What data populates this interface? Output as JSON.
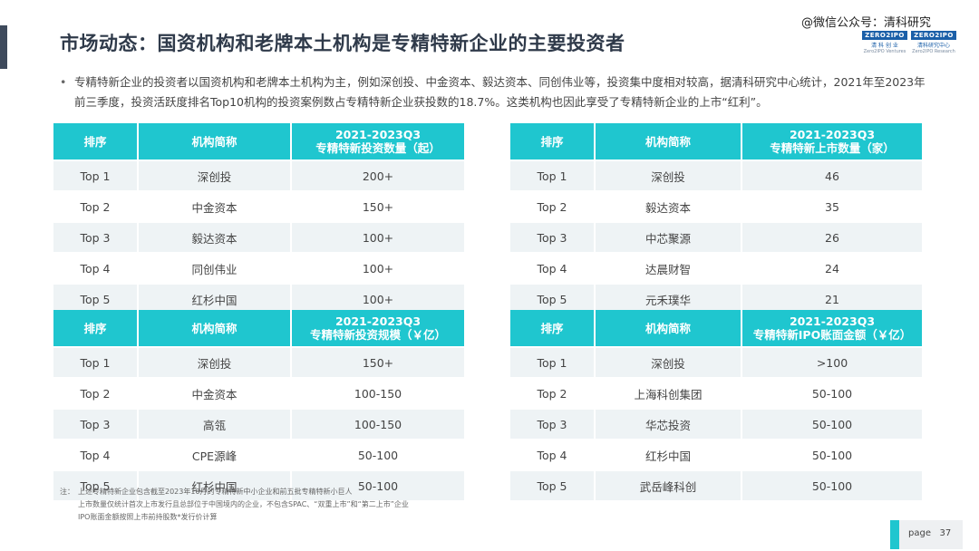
{
  "header": {
    "title": "市场动态：国资机构和老牌本土机构是专精特新企业的主要投资者",
    "watermark": "@微信公众号：清科研究",
    "logo1": {
      "top": "ZERO2IPO",
      "mid": "清 科 创 业",
      "bot": "Zero2IPO Ventures"
    },
    "logo2": {
      "top": "ZERO2IPO",
      "mid": "清科研究中心",
      "bot": "Zero2IPO Research"
    }
  },
  "intro": {
    "bullet": "•",
    "text": "专精特新企业的投资者以国资机构和老牌本土机构为主，例如深创投、中金资本、毅达资本、同创伟业等，投资集中度相对较高，据清科研究中心统计，2021年至2023年前三季度，投资活跃度排名Top10机构的投资案例数占专精特新企业获投数的18.7%。这类机构也因此享受了专精特新企业的上市“红利”。"
  },
  "tables": {
    "t1": {
      "headers": [
        "排序",
        "机构简称",
        "2021-2023Q3\n专精特新投资数量（起）"
      ],
      "rows": [
        [
          "Top 1",
          "深创投",
          "200+"
        ],
        [
          "Top 2",
          "中金资本",
          "150+"
        ],
        [
          "Top 3",
          "毅达资本",
          "100+"
        ],
        [
          "Top 4",
          "同创伟业",
          "100+"
        ],
        [
          "Top 5",
          "红杉中国",
          "100+"
        ]
      ]
    },
    "t2": {
      "headers": [
        "排序",
        "机构简称",
        "2021-2023Q3\n专精特新上市数量（家）"
      ],
      "rows": [
        [
          "Top 1",
          "深创投",
          "46"
        ],
        [
          "Top 2",
          "毅达资本",
          "35"
        ],
        [
          "Top 3",
          "中芯聚源",
          "26"
        ],
        [
          "Top 4",
          "达晨财智",
          "24"
        ],
        [
          "Top 5",
          "元禾璞华",
          "21"
        ]
      ]
    },
    "t3": {
      "headers": [
        "排序",
        "机构简称",
        "2021-2023Q3\n专精特新投资规模（￥亿）"
      ],
      "rows": [
        [
          "Top 1",
          "深创投",
          "150+"
        ],
        [
          "Top 2",
          "中金资本",
          "100-150"
        ],
        [
          "Top 3",
          "高瓴",
          "100-150"
        ],
        [
          "Top 4",
          "CPE源峰",
          "50-100"
        ],
        [
          "Top 5",
          "红杉中国",
          "50-100"
        ]
      ]
    },
    "t4": {
      "headers": [
        "排序",
        "机构简称",
        "2021-2023Q3\n专精特新IPO账面金额（￥亿）"
      ],
      "rows": [
        [
          "Top 1",
          "深创投",
          ">100"
        ],
        [
          "Top 2",
          "上海科创集团",
          "50-100"
        ],
        [
          "Top 3",
          "华芯投资",
          "50-100"
        ],
        [
          "Top 4",
          "红杉中国",
          "50-100"
        ],
        [
          "Top 5",
          "武岳峰科创",
          "50-100"
        ]
      ]
    }
  },
  "note": {
    "label": "注：",
    "lines": [
      "上述专精特新企业包含截至2023年10月的专精特新中小企业和前五批专精特新小巨人",
      "上市数量仅统计首次上市发行且总部位于中国境内的企业，不包含SPAC、“双重上市”和“第二上市”企业",
      "IPO账面金额按照上市前持股数*发行价计算"
    ]
  },
  "footer": {
    "page": "page   37"
  }
}
